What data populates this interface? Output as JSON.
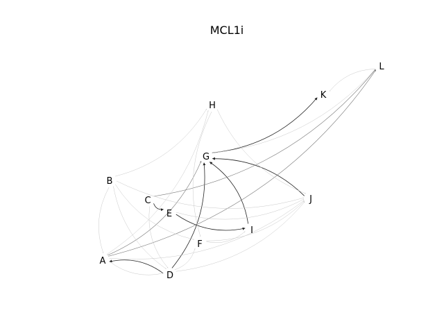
{
  "title": "MCL1i",
  "nodes": [
    {
      "id": "A",
      "label": "A"
    },
    {
      "id": "B",
      "label": "B"
    },
    {
      "id": "C",
      "label": "C"
    },
    {
      "id": "D",
      "label": "D"
    },
    {
      "id": "E",
      "label": "E"
    },
    {
      "id": "F",
      "label": "F"
    },
    {
      "id": "G",
      "label": "G"
    },
    {
      "id": "H",
      "label": "H"
    },
    {
      "id": "I",
      "label": "I"
    },
    {
      "id": "J",
      "label": "J"
    },
    {
      "id": "K",
      "label": "K"
    },
    {
      "id": "L",
      "label": "L"
    }
  ],
  "edges": [
    {
      "from": "C",
      "to": "E",
      "style": "strong"
    },
    {
      "from": "E",
      "to": "I",
      "style": "strong"
    },
    {
      "from": "D",
      "to": "A",
      "style": "strong"
    },
    {
      "from": "D",
      "to": "G",
      "style": "strong"
    },
    {
      "from": "G",
      "to": "K",
      "style": "strong"
    },
    {
      "from": "J",
      "to": "G",
      "style": "strong"
    },
    {
      "from": "I",
      "to": "G",
      "style": "strong"
    },
    {
      "from": "A",
      "to": "L",
      "style": "medium"
    },
    {
      "from": "C",
      "to": "L",
      "style": "medium"
    },
    {
      "from": "A",
      "to": "G",
      "style": "medium"
    },
    {
      "from": "A",
      "to": "H",
      "style": "faint"
    },
    {
      "from": "B",
      "to": "H",
      "style": "faint"
    },
    {
      "from": "B",
      "to": "A",
      "style": "faint"
    },
    {
      "from": "B",
      "to": "D",
      "style": "faint"
    },
    {
      "from": "B",
      "to": "J",
      "style": "faint"
    },
    {
      "from": "D",
      "to": "J",
      "style": "faint"
    },
    {
      "from": "E",
      "to": "J",
      "style": "faint"
    },
    {
      "from": "F",
      "to": "J",
      "style": "faint"
    },
    {
      "from": "A",
      "to": "J",
      "style": "faint"
    },
    {
      "from": "H",
      "to": "J",
      "style": "faint"
    },
    {
      "from": "F",
      "to": "I",
      "style": "faint"
    },
    {
      "from": "D",
      "to": "F",
      "style": "faint"
    },
    {
      "from": "A",
      "to": "D",
      "style": "faint"
    },
    {
      "from": "C",
      "to": "D",
      "style": "faint"
    },
    {
      "from": "L",
      "to": "K",
      "style": "faint"
    },
    {
      "from": "G",
      "to": "L",
      "style": "faint"
    },
    {
      "from": "H",
      "to": "F",
      "style": "faint"
    },
    {
      "from": "B",
      "to": "F",
      "style": "faint"
    }
  ],
  "colors": {
    "strong": "#222222",
    "medium": "#777777",
    "faint": "#c8c8c8",
    "label": "#000000"
  }
}
